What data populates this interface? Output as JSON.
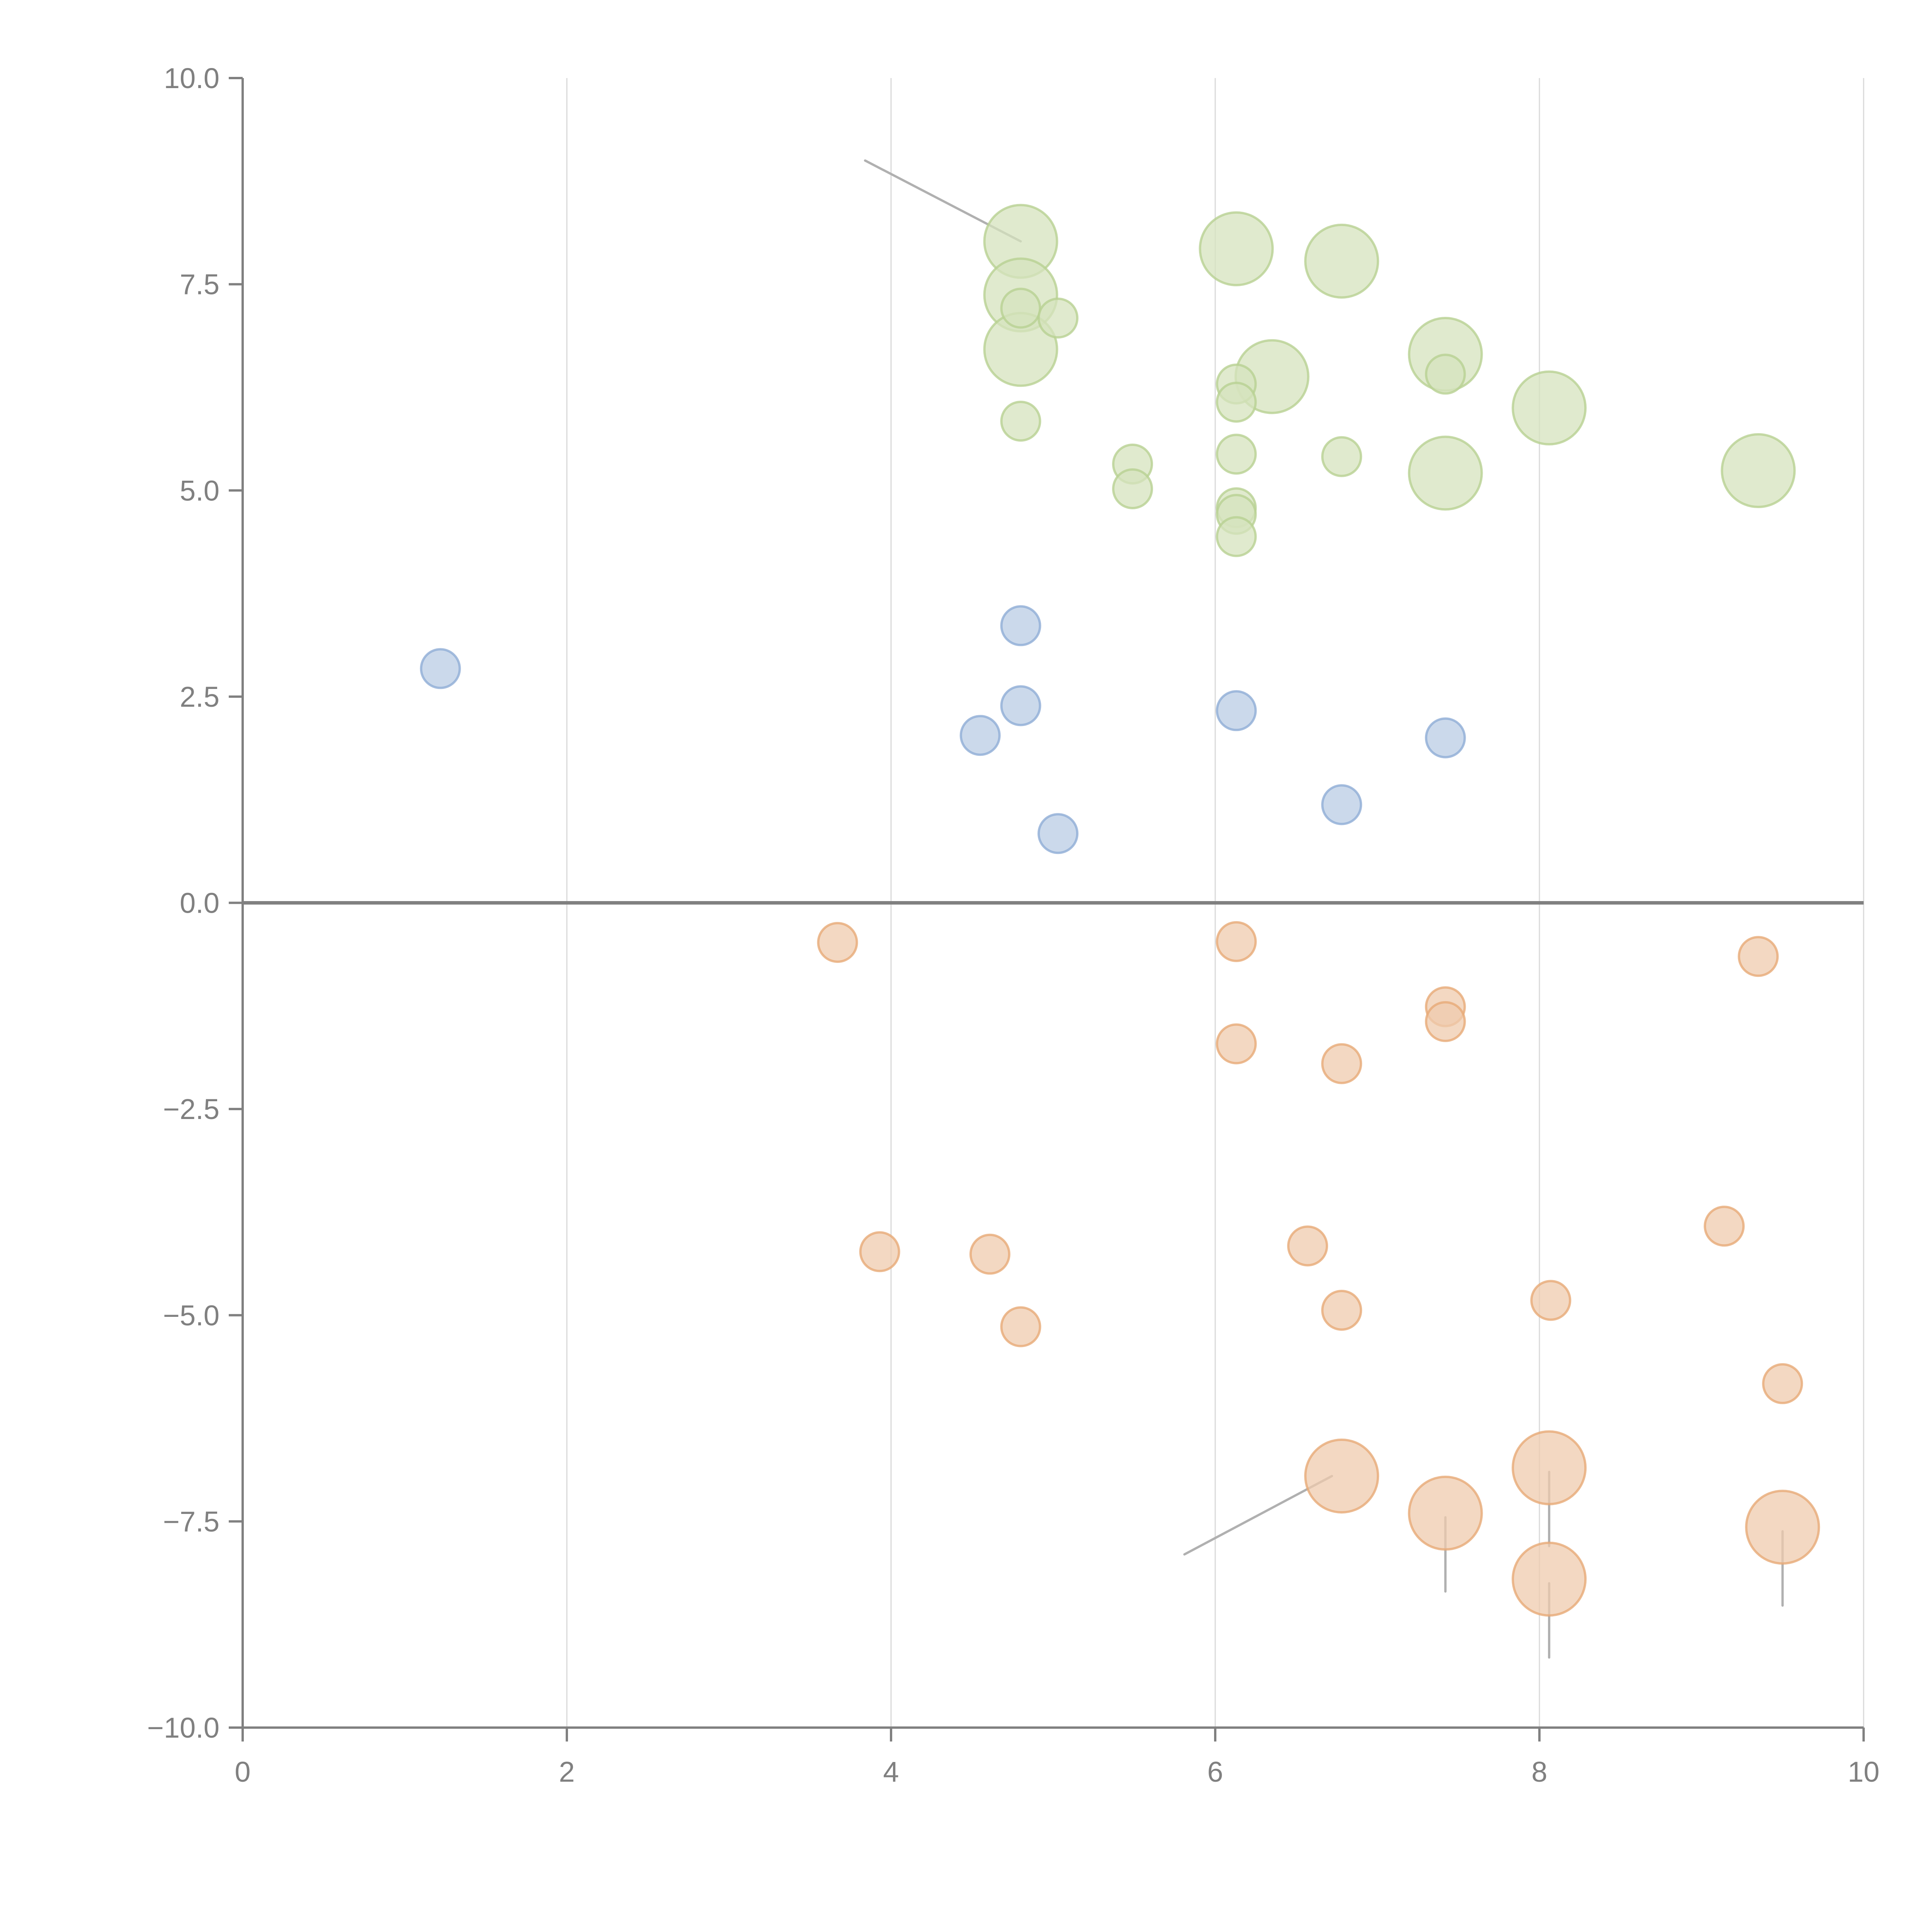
{
  "chart_data": {
    "type": "scatter",
    "title": "",
    "xlabel": "",
    "ylabel": "",
    "xlim": [
      0,
      10
    ],
    "ylim": [
      -10,
      10
    ],
    "x_ticks": [
      "0",
      "2",
      "4",
      "6",
      "8",
      "10"
    ],
    "x_tick_values": [
      0,
      2,
      4,
      6,
      8,
      10
    ],
    "y_ticks": [
      "10.0",
      "7.5",
      "5.0",
      "2.5",
      "0.0",
      "−2.5",
      "−5.0",
      "−7.5",
      "−10.0"
    ],
    "y_tick_values": [
      10,
      7.5,
      5,
      2.5,
      0,
      -2.5,
      -5,
      -7.5,
      -10
    ],
    "grid": "vertical lines at x ticks",
    "reference_line_y": 0,
    "legend": "none",
    "colors": {
      "blue_fill": "#b9cce4",
      "blue_stroke": "#8fadd6",
      "green_fill": "#d5e3bd",
      "green_stroke": "#b8d192",
      "orange_fill": "#efcbad",
      "orange_stroke": "#e7aa77",
      "axis": "#808080",
      "grid": "#d9d9d9",
      "leader": "#b0b0b0"
    },
    "series": [
      {
        "name": "blue",
        "size": "small",
        "points": [
          [
            1.22,
            2.84
          ],
          [
            4.8,
            3.36
          ],
          [
            4.55,
            2.03
          ],
          [
            4.8,
            2.39
          ],
          [
            5.03,
            0.84
          ],
          [
            6.13,
            2.33
          ],
          [
            6.78,
            1.19
          ],
          [
            7.42,
            2.0
          ]
        ]
      },
      {
        "name": "green-small",
        "size": "small",
        "points": [
          [
            4.8,
            7.21
          ],
          [
            5.03,
            7.09
          ],
          [
            4.8,
            5.84
          ],
          [
            5.49,
            5.32
          ],
          [
            5.49,
            5.02
          ],
          [
            6.13,
            6.29
          ],
          [
            6.13,
            6.07
          ],
          [
            6.13,
            5.44
          ],
          [
            6.13,
            4.79
          ],
          [
            6.13,
            4.71
          ],
          [
            6.13,
            4.44
          ],
          [
            6.78,
            5.41
          ],
          [
            7.42,
            6.41
          ]
        ]
      },
      {
        "name": "green-large",
        "size": "large",
        "points": [
          [
            4.8,
            8.02
          ],
          [
            4.8,
            7.37
          ],
          [
            4.8,
            6.71
          ],
          [
            6.13,
            7.93
          ],
          [
            6.78,
            7.78
          ],
          [
            6.35,
            6.38
          ],
          [
            7.42,
            6.65
          ],
          [
            8.06,
            6.0
          ],
          [
            7.42,
            5.21
          ],
          [
            9.35,
            5.24
          ]
        ]
      },
      {
        "name": "orange-small",
        "size": "small",
        "points": [
          [
            3.67,
            -0.48
          ],
          [
            6.13,
            -0.47
          ],
          [
            9.35,
            -0.65
          ],
          [
            7.42,
            -1.26
          ],
          [
            7.42,
            -1.44
          ],
          [
            6.13,
            -1.71
          ],
          [
            6.78,
            -1.95
          ],
          [
            3.93,
            -4.23
          ],
          [
            4.61,
            -4.26
          ],
          [
            6.57,
            -4.16
          ],
          [
            9.14,
            -3.92
          ],
          [
            4.8,
            -5.14
          ],
          [
            6.78,
            -4.94
          ],
          [
            8.07,
            -4.82
          ],
          [
            9.5,
            -5.83
          ]
        ]
      },
      {
        "name": "orange-large",
        "size": "large",
        "points": [
          [
            6.78,
            -6.95
          ],
          [
            7.42,
            -7.4
          ],
          [
            8.06,
            -6.85
          ],
          [
            8.06,
            -8.2
          ],
          [
            9.5,
            -7.57
          ]
        ]
      }
    ],
    "annotation_leaders": [
      {
        "from": [
          4.8,
          8.02
        ],
        "to": [
          3.84,
          9.0
        ],
        "color": "gray"
      },
      {
        "from": [
          6.72,
          -6.95
        ],
        "to": [
          5.81,
          -7.9
        ],
        "color": "gray"
      },
      {
        "from": [
          7.42,
          -7.45
        ],
        "to": [
          7.42,
          -8.35
        ],
        "color": "gray"
      },
      {
        "from": [
          8.06,
          -6.9
        ],
        "to": [
          8.06,
          -7.8
        ],
        "color": "gray"
      },
      {
        "from": [
          8.06,
          -8.25
        ],
        "to": [
          8.06,
          -9.15
        ],
        "color": "gray"
      },
      {
        "from": [
          9.5,
          -7.62
        ],
        "to": [
          9.5,
          -8.52
        ],
        "color": "gray"
      }
    ]
  }
}
